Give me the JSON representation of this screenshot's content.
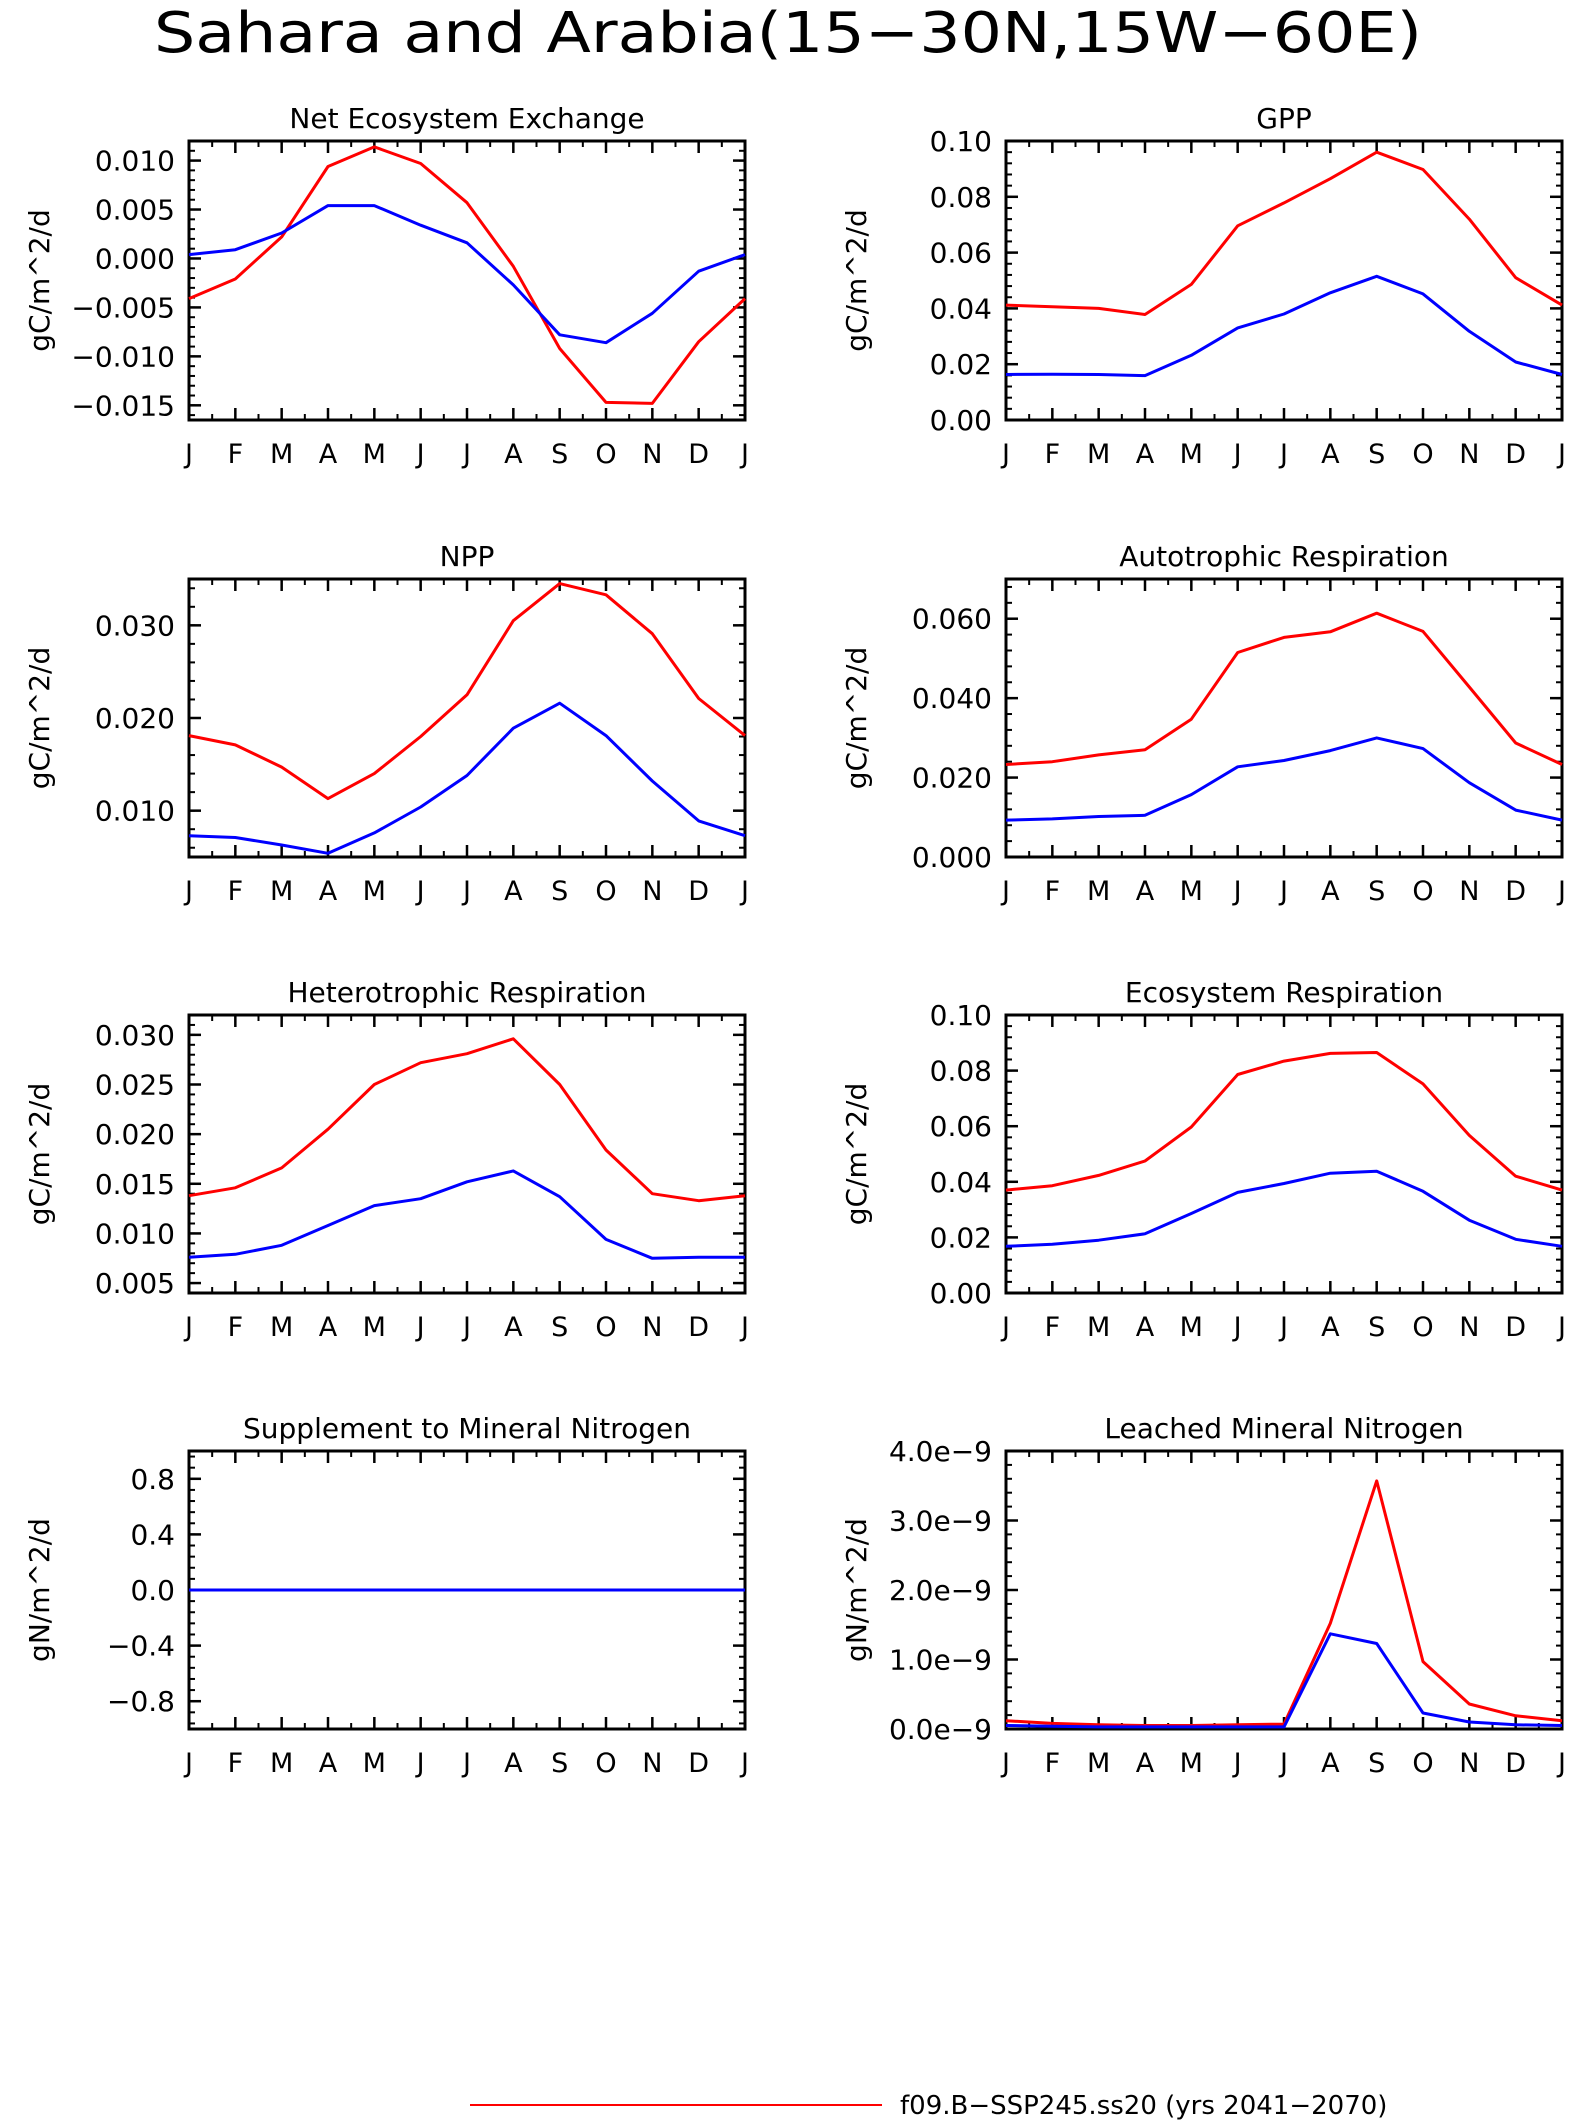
{
  "figure": {
    "title": "Sahara and Arabia(15−30N,15W−60E)",
    "months": [
      "J",
      "F",
      "M",
      "A",
      "M",
      "J",
      "J",
      "A",
      "S",
      "O",
      "N",
      "D",
      "J"
    ],
    "legend": [
      {
        "label": "f09.B−SSP245.ss20 (yrs 2041−2070)",
        "color": "#ff0000"
      }
    ]
  },
  "chart_data": [
    {
      "type": "line",
      "title": "Net Ecosystem Exchange",
      "ylabel": "gC/m^2/d",
      "ylim": [
        -0.0165,
        0.012
      ],
      "yticks": [
        -0.015,
        -0.01,
        -0.005,
        0.0,
        0.005,
        0.01
      ],
      "ytick_labels": [
        "−0.015",
        "−0.010",
        "−0.005",
        "0.000",
        "0.005",
        "0.010"
      ],
      "categories": [
        "J",
        "F",
        "M",
        "A",
        "M",
        "J",
        "J",
        "A",
        "S",
        "O",
        "N",
        "D",
        "J"
      ],
      "series": [
        {
          "color": "#ff0000",
          "values": [
            -0.0041,
            -0.0021,
            0.0022,
            0.0094,
            0.0114,
            0.0097,
            0.0057,
            -0.0008,
            -0.0092,
            -0.0147,
            -0.0148,
            -0.0085,
            -0.0041
          ]
        },
        {
          "color": "#0000ff",
          "values": [
            0.0004,
            0.0009,
            0.0026,
            0.0054,
            0.0054,
            0.0034,
            0.0016,
            -0.0027,
            -0.0078,
            -0.0086,
            -0.0056,
            -0.0013,
            0.0004
          ]
        }
      ]
    },
    {
      "type": "line",
      "title": "GPP",
      "ylabel": "gC/m^2/d",
      "ylim": [
        0,
        0.1
      ],
      "yticks": [
        0,
        0.02,
        0.04,
        0.06,
        0.08,
        0.1
      ],
      "ytick_labels": [
        "0.00",
        "0.02",
        "0.04",
        "0.06",
        "0.08",
        "0.10"
      ],
      "categories": [
        "J",
        "F",
        "M",
        "A",
        "M",
        "J",
        "J",
        "A",
        "S",
        "O",
        "N",
        "D",
        "J"
      ],
      "series": [
        {
          "color": "#ff0000",
          "values": [
            0.0412,
            0.0406,
            0.04,
            0.0378,
            0.0486,
            0.0696,
            0.0778,
            0.0865,
            0.096,
            0.0898,
            0.072,
            0.051,
            0.0412
          ]
        },
        {
          "color": "#0000ff",
          "values": [
            0.0163,
            0.0164,
            0.0163,
            0.0159,
            0.0232,
            0.033,
            0.038,
            0.0456,
            0.0515,
            0.0452,
            0.0318,
            0.0208,
            0.0163
          ]
        }
      ]
    },
    {
      "type": "line",
      "title": "NPP",
      "ylabel": "gC/m^2/d",
      "ylim": [
        0.005,
        0.035
      ],
      "yticks": [
        0.01,
        0.02,
        0.03
      ],
      "ytick_labels": [
        "0.010",
        "0.020",
        "0.030"
      ],
      "categories": [
        "J",
        "F",
        "M",
        "A",
        "M",
        "J",
        "J",
        "A",
        "S",
        "O",
        "N",
        "D",
        "J"
      ],
      "series": [
        {
          "color": "#ff0000",
          "values": [
            0.0181,
            0.0171,
            0.0147,
            0.0113,
            0.014,
            0.018,
            0.0225,
            0.0305,
            0.0345,
            0.0333,
            0.0291,
            0.0221,
            0.0181
          ]
        },
        {
          "color": "#0000ff",
          "values": [
            0.0073,
            0.0071,
            0.0063,
            0.0054,
            0.0076,
            0.0104,
            0.0138,
            0.0189,
            0.0216,
            0.0181,
            0.0132,
            0.0089,
            0.0073
          ]
        }
      ]
    },
    {
      "type": "line",
      "title": "Autotrophic Respiration",
      "ylabel": "gC/m^2/d",
      "ylim": [
        0,
        0.07
      ],
      "yticks": [
        0,
        0.02,
        0.04,
        0.06
      ],
      "ytick_labels": [
        "0.000",
        "0.020",
        "0.040",
        "0.060"
      ],
      "categories": [
        "J",
        "F",
        "M",
        "A",
        "M",
        "J",
        "J",
        "A",
        "S",
        "O",
        "N",
        "D",
        "J"
      ],
      "series": [
        {
          "color": "#ff0000",
          "values": [
            0.0233,
            0.024,
            0.0257,
            0.027,
            0.0347,
            0.0515,
            0.0553,
            0.0567,
            0.0614,
            0.0568,
            0.0428,
            0.0287,
            0.0233
          ]
        },
        {
          "color": "#0000ff",
          "values": [
            0.0093,
            0.0096,
            0.0102,
            0.0105,
            0.0157,
            0.0227,
            0.0243,
            0.0268,
            0.03,
            0.0273,
            0.0187,
            0.0118,
            0.0093
          ]
        }
      ]
    },
    {
      "type": "line",
      "title": "Heterotrophic Respiration",
      "ylabel": "gC/m^2/d",
      "ylim": [
        0.004,
        0.032
      ],
      "yticks": [
        0.005,
        0.01,
        0.015,
        0.02,
        0.025,
        0.03
      ],
      "ytick_labels": [
        "0.005",
        "0.010",
        "0.015",
        "0.020",
        "0.025",
        "0.030"
      ],
      "categories": [
        "J",
        "F",
        "M",
        "A",
        "M",
        "J",
        "J",
        "A",
        "S",
        "O",
        "N",
        "D",
        "J"
      ],
      "series": [
        {
          "color": "#ff0000",
          "values": [
            0.0138,
            0.0146,
            0.0166,
            0.0205,
            0.025,
            0.0272,
            0.0281,
            0.0296,
            0.025,
            0.0184,
            0.014,
            0.0133,
            0.0138
          ]
        },
        {
          "color": "#0000ff",
          "values": [
            0.0076,
            0.0079,
            0.0088,
            0.0108,
            0.0128,
            0.0135,
            0.0152,
            0.0163,
            0.0137,
            0.0094,
            0.0075,
            0.0076,
            0.0076
          ]
        }
      ]
    },
    {
      "type": "line",
      "title": "Ecosystem Respiration",
      "ylabel": "gC/m^2/d",
      "ylim": [
        0,
        0.1
      ],
      "yticks": [
        0,
        0.02,
        0.04,
        0.06,
        0.08,
        0.1
      ],
      "ytick_labels": [
        "0.00",
        "0.02",
        "0.04",
        "0.06",
        "0.08",
        "0.10"
      ],
      "categories": [
        "J",
        "F",
        "M",
        "A",
        "M",
        "J",
        "J",
        "A",
        "S",
        "O",
        "N",
        "D",
        "J"
      ],
      "series": [
        {
          "color": "#ff0000",
          "values": [
            0.037,
            0.0386,
            0.0423,
            0.0475,
            0.0597,
            0.0786,
            0.0834,
            0.0862,
            0.0865,
            0.0752,
            0.0567,
            0.042,
            0.037
          ]
        },
        {
          "color": "#0000ff",
          "values": [
            0.0168,
            0.0175,
            0.019,
            0.0213,
            0.0286,
            0.0362,
            0.0394,
            0.0431,
            0.0438,
            0.0366,
            0.0262,
            0.0193,
            0.0168
          ]
        }
      ]
    },
    {
      "type": "line",
      "title": "Supplement to Mineral Nitrogen",
      "ylabel": "gN/m^2/d",
      "ylim": [
        -1.0,
        1.0
      ],
      "yticks": [
        -0.8,
        -0.4,
        0.0,
        0.4,
        0.8
      ],
      "ytick_labels": [
        "−0.8",
        "−0.4",
        "0.0",
        "0.4",
        "0.8"
      ],
      "categories": [
        "J",
        "F",
        "M",
        "A",
        "M",
        "J",
        "J",
        "A",
        "S",
        "O",
        "N",
        "D",
        "J"
      ],
      "series": [
        {
          "color": "#ff0000",
          "values": [
            0,
            0,
            0,
            0,
            0,
            0,
            0,
            0,
            0,
            0,
            0,
            0,
            0
          ]
        },
        {
          "color": "#0000ff",
          "values": [
            0,
            0,
            0,
            0,
            0,
            0,
            0,
            0,
            0,
            0,
            0,
            0,
            0
          ]
        }
      ]
    },
    {
      "type": "line",
      "title": "Leached Mineral Nitrogen",
      "ylabel": "gN/m^2/d",
      "ylim": [
        0,
        4e-09
      ],
      "yticks": [
        0,
        1e-09,
        2e-09,
        3e-09,
        4e-09
      ],
      "ytick_labels": [
        "0.0e−9",
        "1.0e−9",
        "2.0e−9",
        "3.0e−9",
        "4.0e−9"
      ],
      "categories": [
        "J",
        "F",
        "M",
        "A",
        "M",
        "J",
        "J",
        "A",
        "S",
        "O",
        "N",
        "D",
        "J"
      ],
      "series": [
        {
          "color": "#ff0000",
          "values": [
            1.2e-10,
            8e-11,
            6e-11,
            5e-11,
            5e-11,
            6e-11,
            7e-11,
            1.52e-09,
            3.57e-09,
            9.7e-10,
            3.6e-10,
            1.9e-10,
            1.2e-10
          ]
        },
        {
          "color": "#0000ff",
          "values": [
            5e-11,
            4e-11,
            3e-11,
            3e-11,
            3e-11,
            3e-11,
            3e-11,
            1.37e-09,
            1.23e-09,
            2.3e-10,
            1e-10,
            6e-11,
            5e-11
          ]
        }
      ]
    }
  ]
}
